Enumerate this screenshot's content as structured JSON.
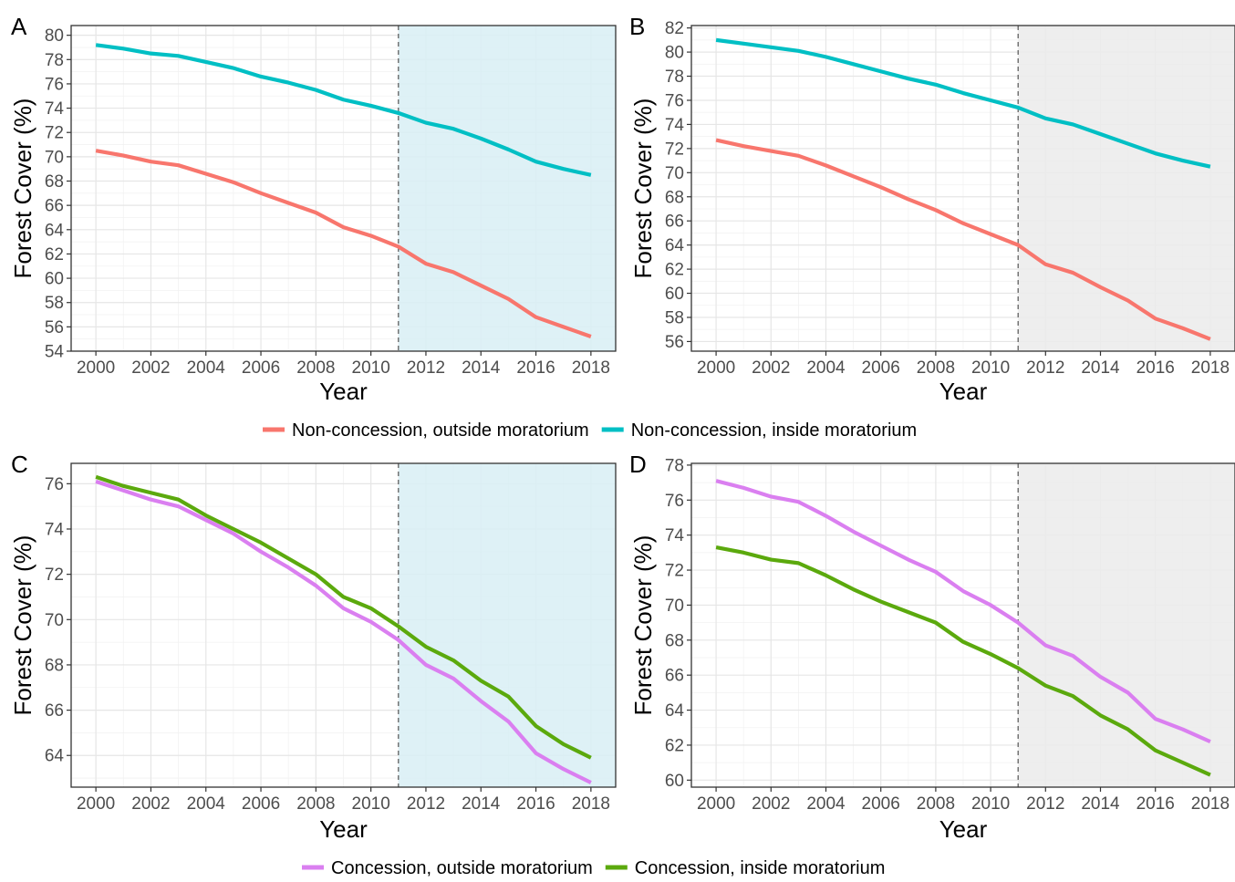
{
  "legends": [
    {
      "items": [
        {
          "label": "Non-concession, outside moratorium",
          "color": "#F8766D"
        },
        {
          "label": "Non-concession, inside moratorium",
          "color": "#00BFC4"
        }
      ]
    },
    {
      "items": [
        {
          "label": "Concession, outside moratorium",
          "color": "#DA7FF0"
        },
        {
          "label": "Concession, inside moratorium",
          "color": "#5BA90D"
        }
      ]
    }
  ],
  "chart_data": [
    {
      "panel": "A",
      "type": "line",
      "xlabel": "Year",
      "ylabel": "Forest Cover (%)",
      "xlim": [
        1999.1,
        2018.9
      ],
      "ylim": [
        54,
        80.8
      ],
      "x_ticks": [
        2000,
        2002,
        2004,
        2006,
        2008,
        2010,
        2012,
        2014,
        2016,
        2018
      ],
      "y_ticks": [
        54,
        56,
        58,
        60,
        62,
        64,
        66,
        68,
        70,
        72,
        74,
        76,
        78,
        80
      ],
      "moratorium_start": 2011,
      "shade_color": "#d8eef4",
      "grid": true,
      "x": [
        2000,
        2001,
        2002,
        2003,
        2004,
        2005,
        2006,
        2007,
        2008,
        2009,
        2010,
        2011,
        2012,
        2013,
        2014,
        2015,
        2016,
        2017,
        2018
      ],
      "series": [
        {
          "name": "Non-concession, outside moratorium",
          "color": "#F8766D",
          "values": [
            70.5,
            70.1,
            69.6,
            69.3,
            68.6,
            67.9,
            67.0,
            66.2,
            65.4,
            64.2,
            63.5,
            62.6,
            61.2,
            60.5,
            59.4,
            58.3,
            56.8,
            56.0,
            55.2
          ]
        },
        {
          "name": "Non-concession, inside moratorium",
          "color": "#00BFC4",
          "values": [
            79.2,
            78.9,
            78.5,
            78.3,
            77.8,
            77.3,
            76.6,
            76.1,
            75.5,
            74.7,
            74.2,
            73.6,
            72.8,
            72.3,
            71.5,
            70.6,
            69.6,
            69.0,
            68.5
          ]
        }
      ]
    },
    {
      "panel": "B",
      "type": "line",
      "xlabel": "Year",
      "ylabel": "Forest Cover (%)",
      "xlim": [
        1999.1,
        2018.9
      ],
      "ylim": [
        55.2,
        82.2
      ],
      "x_ticks": [
        2000,
        2002,
        2004,
        2006,
        2008,
        2010,
        2012,
        2014,
        2016,
        2018
      ],
      "y_ticks": [
        56,
        58,
        60,
        62,
        64,
        66,
        68,
        70,
        72,
        74,
        76,
        78,
        80,
        82
      ],
      "moratorium_start": 2011,
      "shade_color": "#ebebeb",
      "grid": true,
      "x": [
        2000,
        2001,
        2002,
        2003,
        2004,
        2005,
        2006,
        2007,
        2008,
        2009,
        2010,
        2011,
        2012,
        2013,
        2014,
        2015,
        2016,
        2017,
        2018
      ],
      "series": [
        {
          "name": "Non-concession, outside moratorium",
          "color": "#F8766D",
          "values": [
            72.7,
            72.2,
            71.8,
            71.4,
            70.6,
            69.7,
            68.8,
            67.8,
            66.9,
            65.8,
            64.9,
            64.0,
            62.4,
            61.7,
            60.5,
            59.4,
            57.9,
            57.1,
            56.2
          ]
        },
        {
          "name": "Non-concession, inside moratorium",
          "color": "#00BFC4",
          "values": [
            81.0,
            80.7,
            80.4,
            80.1,
            79.6,
            79.0,
            78.4,
            77.8,
            77.3,
            76.6,
            76.0,
            75.4,
            74.5,
            74.0,
            73.2,
            72.4,
            71.6,
            71.0,
            70.5
          ]
        }
      ]
    },
    {
      "panel": "C",
      "type": "line",
      "xlabel": "Year",
      "ylabel": "Forest Cover (%)",
      "xlim": [
        1999.1,
        2018.9
      ],
      "ylim": [
        62.6,
        76.9
      ],
      "x_ticks": [
        2000,
        2002,
        2004,
        2006,
        2008,
        2010,
        2012,
        2014,
        2016,
        2018
      ],
      "y_ticks": [
        64,
        66,
        68,
        70,
        72,
        74,
        76
      ],
      "moratorium_start": 2011,
      "shade_color": "#d8eef4",
      "grid": true,
      "x": [
        2000,
        2001,
        2002,
        2003,
        2004,
        2005,
        2006,
        2007,
        2008,
        2009,
        2010,
        2011,
        2012,
        2013,
        2014,
        2015,
        2016,
        2017,
        2018
      ],
      "series": [
        {
          "name": "Concession, outside moratorium",
          "color": "#DA7FF0",
          "values": [
            76.1,
            75.7,
            75.3,
            75.0,
            74.4,
            73.8,
            73.0,
            72.3,
            71.5,
            70.5,
            69.9,
            69.1,
            68.0,
            67.4,
            66.4,
            65.5,
            64.1,
            63.4,
            62.8
          ]
        },
        {
          "name": "Concession, inside moratorium",
          "color": "#5BA90D",
          "values": [
            76.3,
            75.9,
            75.6,
            75.3,
            74.6,
            74.0,
            73.4,
            72.7,
            72.0,
            71.0,
            70.5,
            69.7,
            68.8,
            68.2,
            67.3,
            66.6,
            65.3,
            64.5,
            63.9
          ]
        }
      ]
    },
    {
      "panel": "D",
      "type": "line",
      "xlabel": "Year",
      "ylabel": "Forest Cover (%)",
      "xlim": [
        1999.1,
        2018.9
      ],
      "ylim": [
        59.6,
        78.1
      ],
      "x_ticks": [
        2000,
        2002,
        2004,
        2006,
        2008,
        2010,
        2012,
        2014,
        2016,
        2018
      ],
      "y_ticks": [
        60,
        62,
        64,
        66,
        68,
        70,
        72,
        74,
        76,
        78
      ],
      "moratorium_start": 2011,
      "shade_color": "#ebebeb",
      "grid": true,
      "x": [
        2000,
        2001,
        2002,
        2003,
        2004,
        2005,
        2006,
        2007,
        2008,
        2009,
        2010,
        2011,
        2012,
        2013,
        2014,
        2015,
        2016,
        2017,
        2018
      ],
      "series": [
        {
          "name": "Concession, outside moratorium",
          "color": "#DA7FF0",
          "values": [
            77.1,
            76.7,
            76.2,
            75.9,
            75.1,
            74.2,
            73.4,
            72.6,
            71.9,
            70.8,
            70.0,
            69.0,
            67.7,
            67.1,
            65.9,
            65.0,
            63.5,
            62.9,
            62.2
          ]
        },
        {
          "name": "Concession, inside moratorium",
          "color": "#5BA90D",
          "values": [
            73.3,
            73.0,
            72.6,
            72.4,
            71.7,
            70.9,
            70.2,
            69.6,
            69.0,
            67.9,
            67.2,
            66.4,
            65.4,
            64.8,
            63.7,
            62.9,
            61.7,
            61.0,
            60.3
          ]
        }
      ]
    }
  ]
}
